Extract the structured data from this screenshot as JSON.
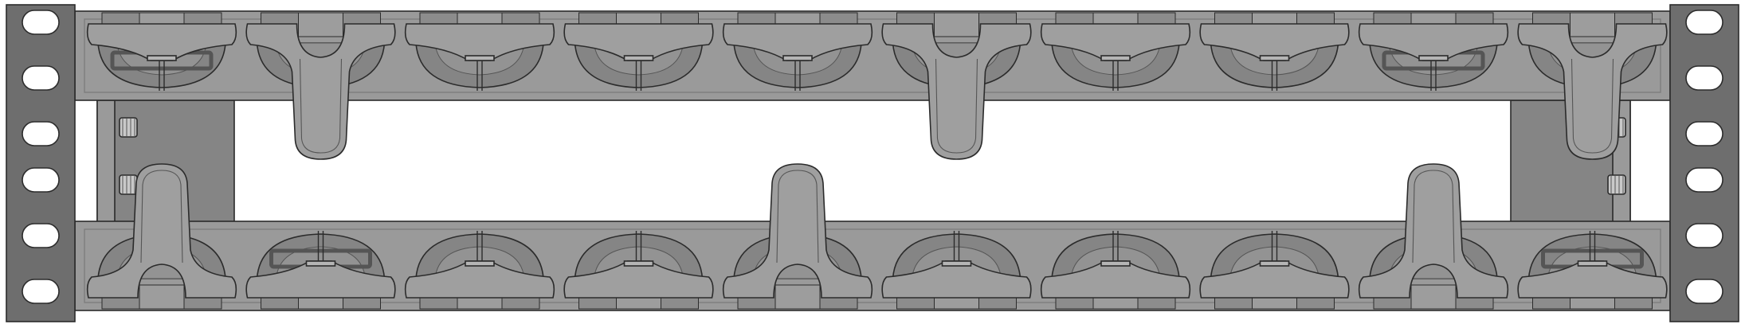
{
  "colors": {
    "background": "#ffffff",
    "ear": "#6e6e6e",
    "ear_hole": "#ffffff",
    "rail": "#9a9a9a",
    "rail_dark": "#7d7d7d",
    "cabinet": "#858585",
    "screw": "#c9c9c9",
    "slot": "#8c8c8c",
    "mount": "#858585",
    "mount_inner": "#939393",
    "grip": "#9f9f9f",
    "outline": "#2b2b2b",
    "label_frame": "#555555"
  },
  "rows": [
    {
      "name": "upper",
      "units": [
        {
          "knob": "t-handle",
          "label": true
        },
        {
          "knob": "long-handle"
        },
        {
          "knob": "t-handle"
        },
        {
          "knob": "t-handle"
        },
        {
          "knob": "t-handle"
        },
        {
          "knob": "long-handle"
        },
        {
          "knob": "t-handle"
        },
        {
          "knob": "t-handle"
        },
        {
          "knob": "t-handle",
          "label": true
        },
        {
          "knob": "long-handle"
        }
      ]
    },
    {
      "name": "lower",
      "units": [
        {
          "knob": "long-handle"
        },
        {
          "knob": "t-handle",
          "label": true
        },
        {
          "knob": "t-handle"
        },
        {
          "knob": "t-handle"
        },
        {
          "knob": "long-handle"
        },
        {
          "knob": "t-handle"
        },
        {
          "knob": "t-handle"
        },
        {
          "knob": "t-handle"
        },
        {
          "knob": "long-handle"
        },
        {
          "knob": "t-handle",
          "label": true
        }
      ]
    }
  ],
  "ear_holes": 6,
  "screws": 4
}
